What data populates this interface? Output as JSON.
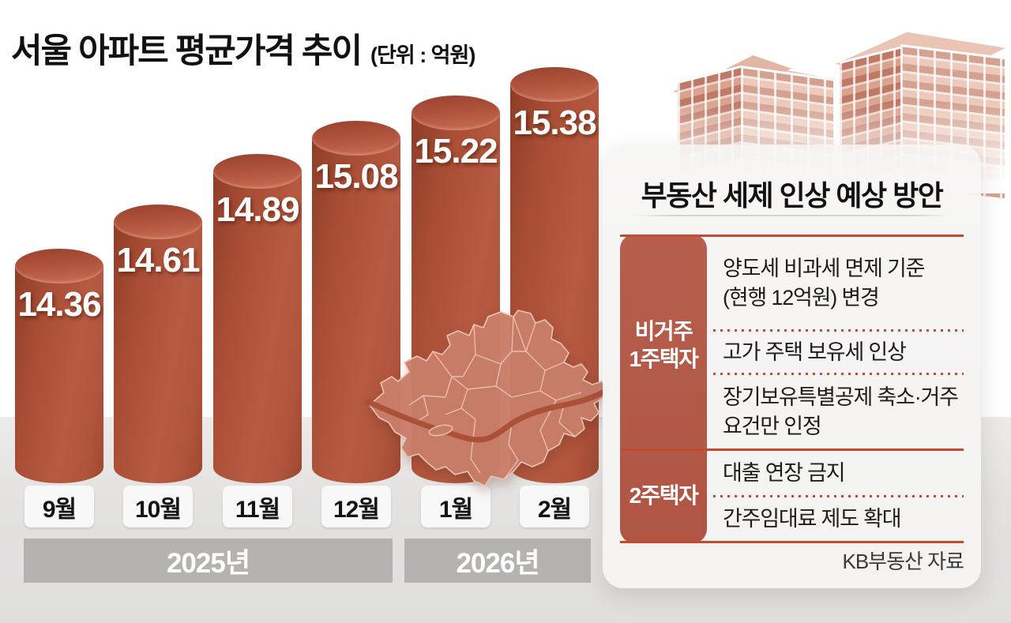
{
  "title": {
    "text": "서울 아파트 평균가격 추이",
    "unit": "(단위 : 억원)"
  },
  "chart_data": {
    "type": "bar",
    "title": "서울 아파트 평균가격 추이",
    "unit_label": "(단위 : 억원)",
    "categories": [
      "9월",
      "10월",
      "11월",
      "12월",
      "1월",
      "2월"
    ],
    "values": [
      14.36,
      14.61,
      14.89,
      15.08,
      15.22,
      15.38
    ],
    "value_labels": [
      "14.36",
      "14.61",
      "14.89",
      "15.08",
      "15.22",
      "15.38"
    ],
    "year_groups": [
      {
        "label": "2025년",
        "months": [
          "9월",
          "10월",
          "11월",
          "12월"
        ]
      },
      {
        "label": "2026년",
        "months": [
          "1월",
          "2월"
        ]
      }
    ],
    "bar_color": "#b2543a",
    "value_label_color": "#ffffff",
    "legend": "none",
    "grid": false
  },
  "panel": {
    "title": "부동산 세제 인상 예상 방안",
    "sections": [
      {
        "label_lines": [
          "비거주",
          "1주택자"
        ],
        "label": "비거주 1주택자",
        "items": [
          "양도세 비과세 면제 기준 (현행 12억원) 변경",
          "고가 주택 보유세 인상",
          "장기보유특별공제 축소·거주 요건만 인정"
        ]
      },
      {
        "label_lines": [
          "2주택자"
        ],
        "label": "2주택자",
        "items": [
          "대출 연장 금지",
          "간주임대료 제도 확대"
        ]
      }
    ],
    "source": "KB부동산 자료",
    "accent_color": "#c14a32",
    "header_bg": "#b45b49"
  }
}
